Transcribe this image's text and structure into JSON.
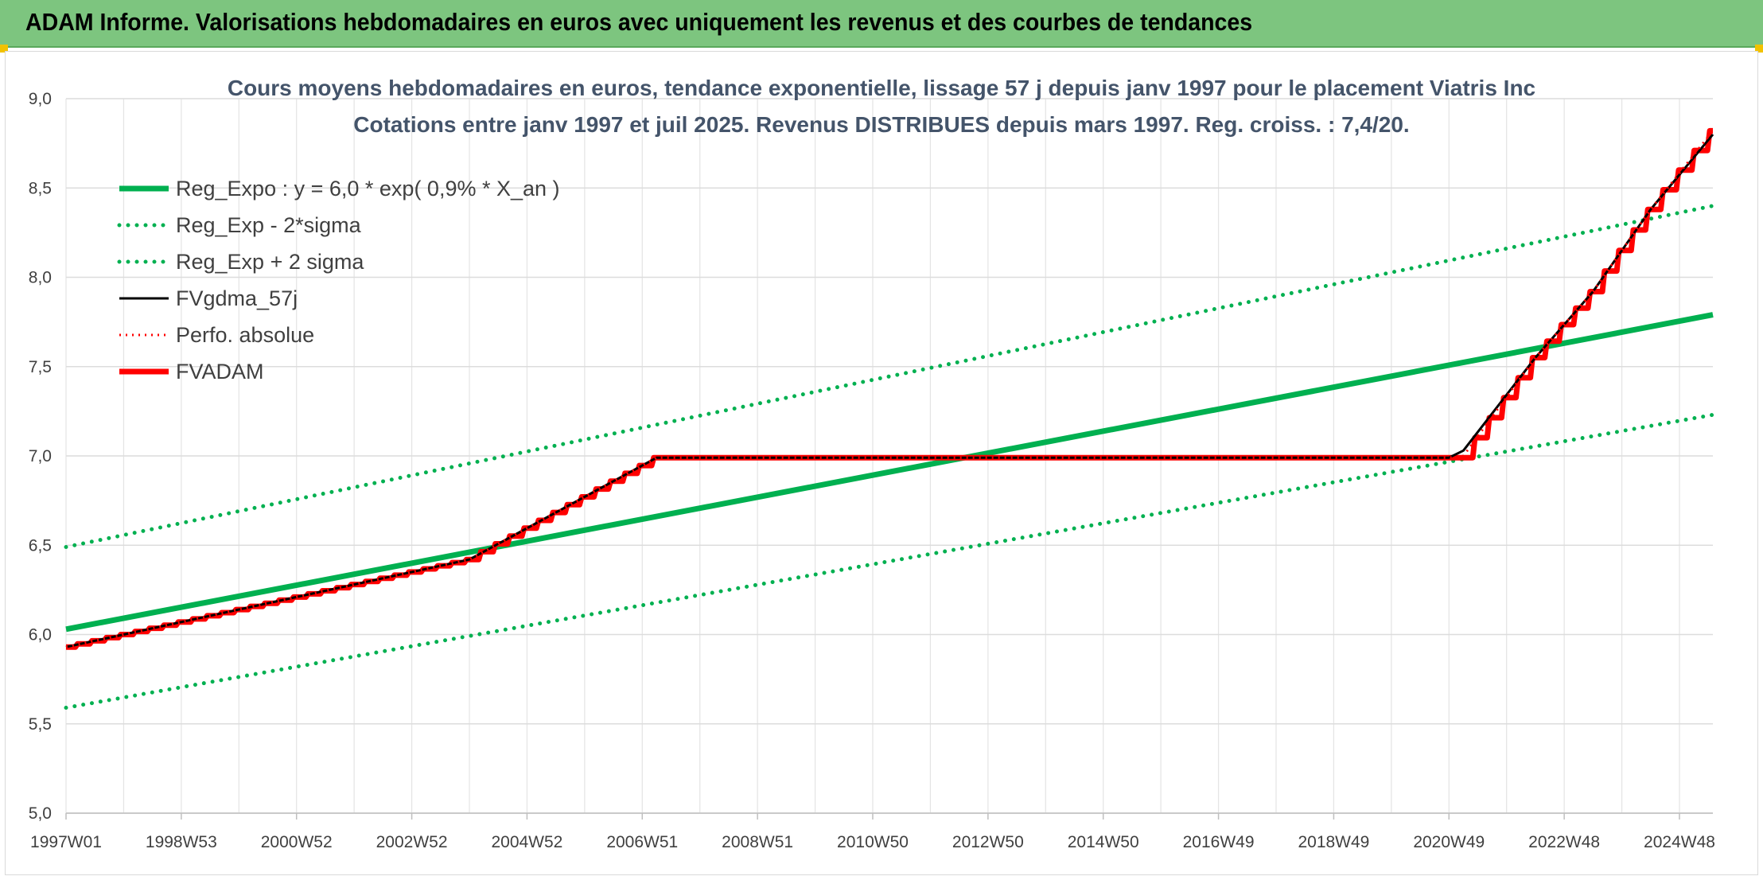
{
  "header": {
    "title": "ADAM Informe. Valorisations hebdomadaires en euros avec uniquement les revenus et des courbes de tendances"
  },
  "chart_data": {
    "type": "line",
    "title_lines": [
      "Cours moyens hebdomadaires en euros, tendance exponentielle, lissage 57 j depuis janv 1997 pour le placement Viatris Inc",
      "Cotations entre janv 1997 et juil 2025. Revenus DISTRIBUES depuis mars 1997. Reg. croiss. : 7,4/20."
    ],
    "ylim": [
      5.0,
      9.0
    ],
    "y_ticks": [
      "5,0",
      "5,5",
      "6,0",
      "6,5",
      "7,0",
      "7,5",
      "8,0",
      "8,5",
      "9,0"
    ],
    "y_tick_values": [
      5.0,
      5.5,
      6.0,
      6.5,
      7.0,
      7.5,
      8.0,
      8.5,
      9.0
    ],
    "x_range_years": [
      1997.0,
      2025.58
    ],
    "x_ticks": [
      "1997W01",
      "1998W53",
      "2000W52",
      "2002W52",
      "2004W52",
      "2006W51",
      "2008W51",
      "2010W50",
      "2012W50",
      "2014W50",
      "2016W49",
      "2018W49",
      "2020W49",
      "2022W48",
      "2024W48"
    ],
    "x_tick_years": [
      1997.0,
      1999.0,
      2001.0,
      2003.0,
      2005.0,
      2007.0,
      2009.0,
      2011.0,
      2013.0,
      2015.0,
      2017.0,
      2019.0,
      2021.0,
      2023.0,
      2025.0
    ],
    "grid": true,
    "legend_position": "top-left",
    "colors": {
      "green": "#00b050",
      "black": "#000000",
      "red": "#ff0000"
    },
    "series": [
      {
        "name": "Reg_Expo : y = 6,0 * exp( 0,9% *  X_an )",
        "style": "solid-green",
        "x": [
          1997.0,
          2025.58
        ],
        "y": [
          6.03,
          7.79
        ]
      },
      {
        "name": "Reg_Exp - 2*sigma",
        "style": "dotted-green",
        "x": [
          1997.0,
          2025.58
        ],
        "y": [
          5.59,
          7.23
        ]
      },
      {
        "name": "Reg_Exp + 2 sigma",
        "style": "dotted-green",
        "x": [
          1997.0,
          2025.58
        ],
        "y": [
          6.49,
          8.4
        ]
      },
      {
        "name": "FVgdma_57j",
        "style": "solid-black",
        "x": [
          1997.0,
          2004.0,
          2007.25,
          2021.0,
          2021.25,
          2022.5,
          2023.5,
          2024.5,
          2025.58
        ],
        "y": [
          5.93,
          6.42,
          6.99,
          6.99,
          7.03,
          7.55,
          7.92,
          8.38,
          8.8
        ]
      },
      {
        "name": "Perfo. absolue",
        "style": "dotted-red",
        "x": [
          1997.0,
          2004.0,
          2007.25,
          2021.0,
          2021.25,
          2022.5,
          2023.5,
          2024.5,
          2025.58
        ],
        "y": [
          5.93,
          6.42,
          6.99,
          6.99,
          7.0,
          7.55,
          7.92,
          8.38,
          8.82
        ]
      },
      {
        "name": "FVADAM",
        "style": "solid-red-steps",
        "x": [
          1997.0,
          2004.0,
          2007.25,
          2021.0,
          2021.25,
          2022.5,
          2023.5,
          2024.5,
          2025.58
        ],
        "y": [
          5.93,
          6.42,
          6.99,
          6.99,
          6.99,
          7.55,
          7.92,
          8.38,
          8.82
        ]
      }
    ]
  }
}
